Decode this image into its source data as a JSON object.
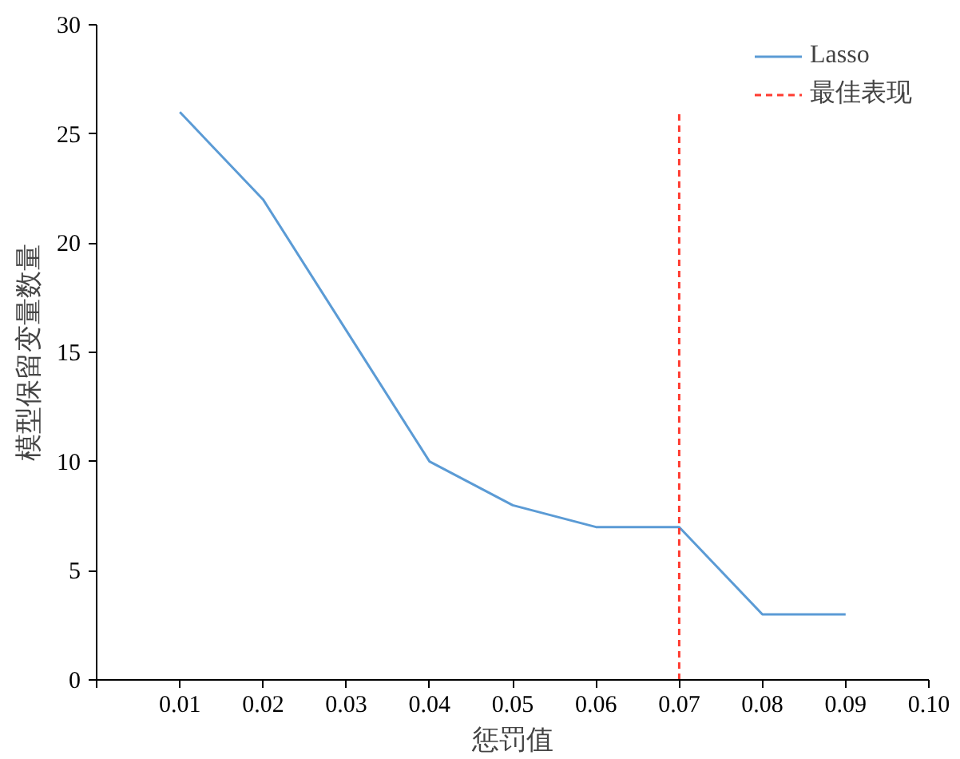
{
  "chart_data": {
    "type": "line",
    "xlabel": "惩罚值",
    "ylabel": "模型保留变量数量",
    "xlim": [
      0,
      0.1
    ],
    "ylim": [
      0,
      30
    ],
    "xticks": [
      {
        "value": 0,
        "label": null
      },
      0.01,
      0.02,
      0.03,
      0.04,
      0.05,
      0.06,
      0.07,
      0.08,
      0.09,
      "0.10"
    ],
    "yticks": [
      0,
      5,
      10,
      15,
      20,
      25,
      30
    ],
    "series": [
      {
        "name": "Lasso",
        "color": "#5b9bd5",
        "x": [
          0.01,
          0.02,
          0.03,
          0.04,
          0.05,
          0.06,
          0.07,
          0.08,
          0.09
        ],
        "values": [
          26,
          22,
          16,
          10,
          8,
          7,
          7,
          3,
          3
        ],
        "line_style": "solid"
      },
      {
        "name": "最佳表现",
        "color": "#ff3b30",
        "x": [
          0.07,
          0.07
        ],
        "values": [
          0,
          26
        ],
        "line_style": "dashed"
      }
    ],
    "legend": "top right",
    "grid": false,
    "marker": "none"
  }
}
